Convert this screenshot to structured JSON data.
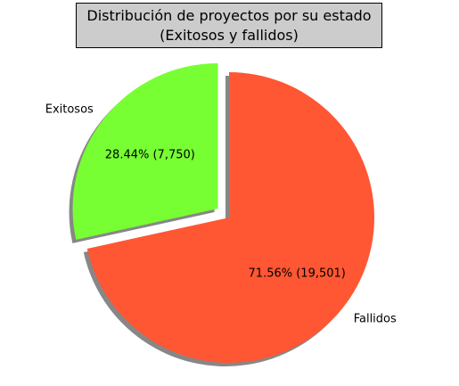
{
  "chart_data": {
    "type": "pie",
    "title": "Distribución de proyectos por su estado",
    "subtitle": "(Exitosos y fallidos)",
    "slices": [
      {
        "label": "Exitosos",
        "value": 7750,
        "percent_label": "28.44%  (7,750)",
        "color": "#77ff33",
        "exploded": true
      },
      {
        "label": "Fallidos",
        "value": 19501,
        "percent_label": "71.56%  (19,501)",
        "color": "#ff5733",
        "exploded": false
      }
    ],
    "shadow": true,
    "start_angle_deg": 90
  }
}
